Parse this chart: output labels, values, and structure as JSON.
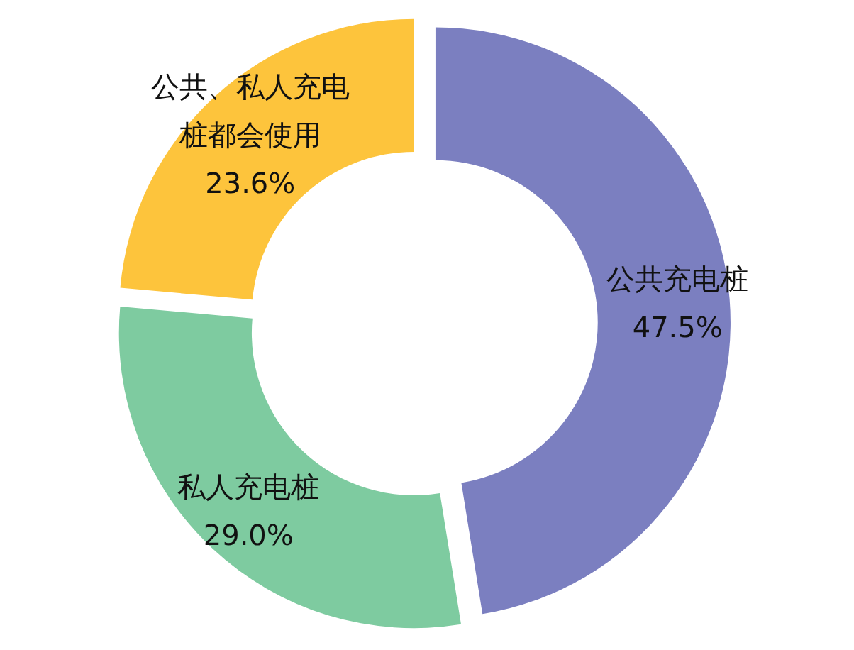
{
  "chart_data": {
    "type": "donut",
    "categories": [
      "公共充电桩",
      "私人充电桩",
      "公共、私人充电桩都会使用"
    ],
    "values": [
      47.5,
      29.0,
      23.6
    ],
    "colors": [
      "#7b7fc0",
      "#7ecba0",
      "#fdc43c"
    ],
    "value_labels": [
      "47.5%",
      "29.0%",
      "23.6%"
    ]
  }
}
